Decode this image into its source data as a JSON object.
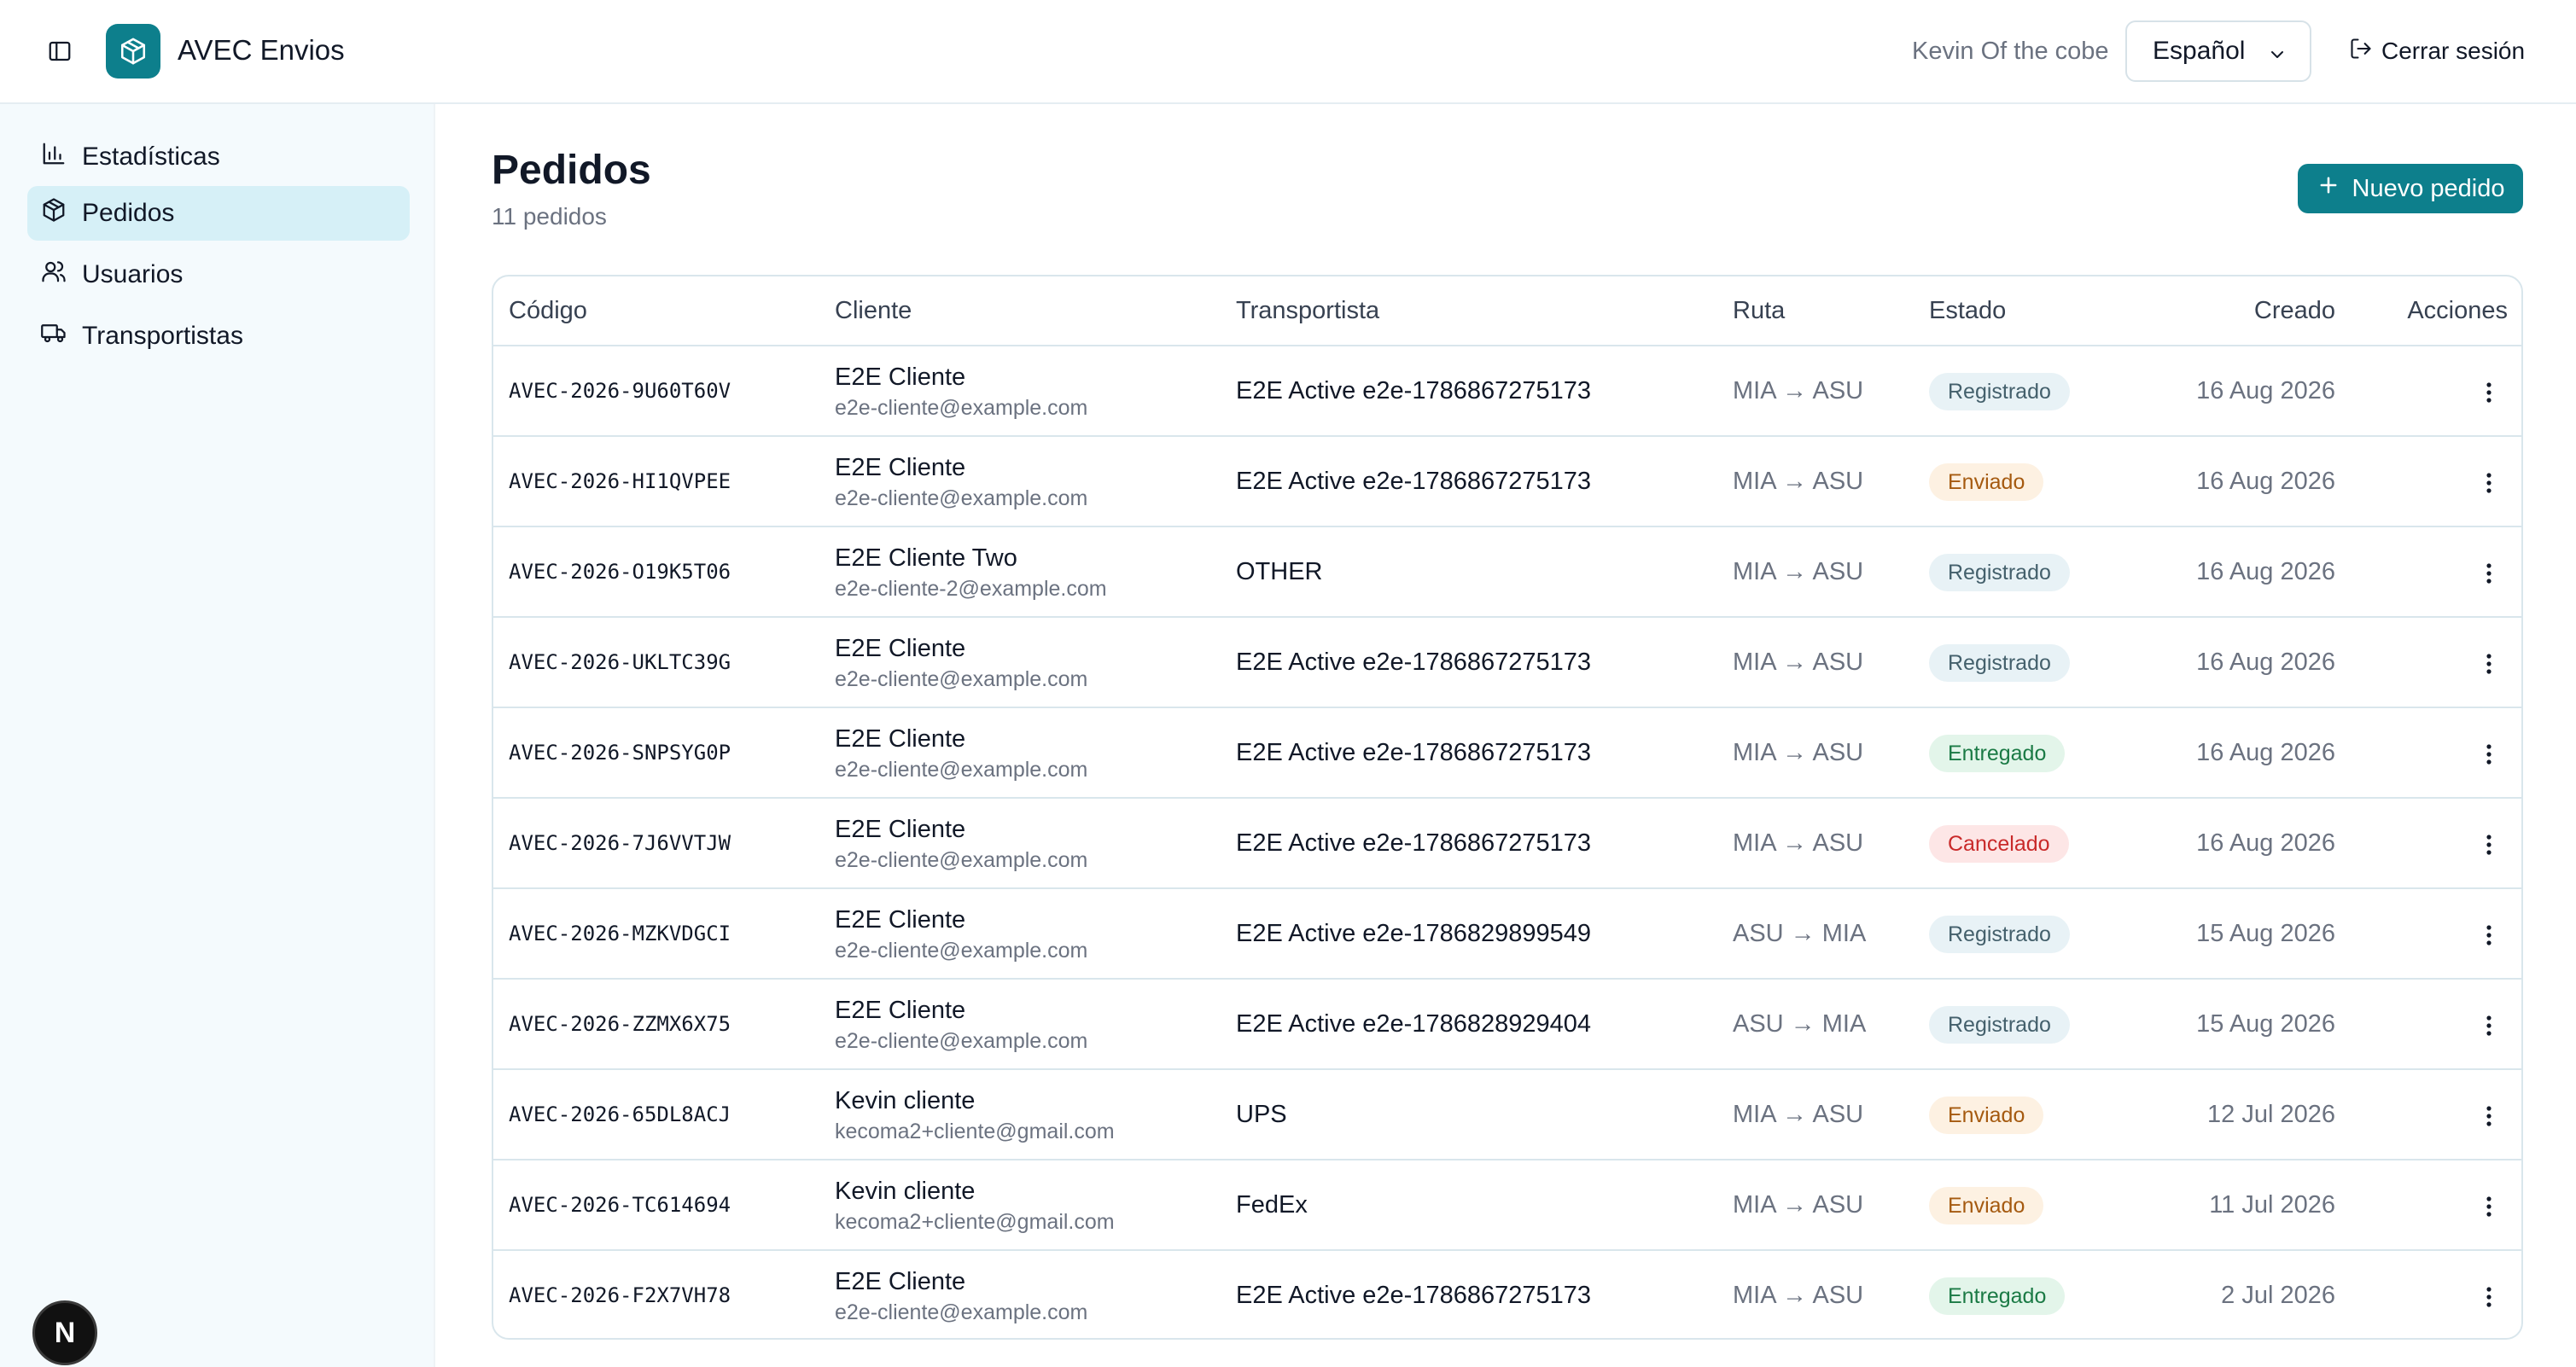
{
  "app": {
    "title": "AVEC Envios",
    "user_name": "Kevin Of the cobe",
    "language": "Español",
    "logout_label": "Cerrar sesión",
    "brand_color": "#0d7f8c"
  },
  "sidebar": {
    "items": [
      {
        "label": "Estadísticas",
        "icon": "bar-chart-icon",
        "active": false
      },
      {
        "label": "Pedidos",
        "icon": "package-icon",
        "active": true
      },
      {
        "label": "Usuarios",
        "icon": "users-icon",
        "active": false
      },
      {
        "label": "Transportistas",
        "icon": "truck-icon",
        "active": false
      }
    ]
  },
  "page": {
    "title": "Pedidos",
    "subtitle": "11 pedidos",
    "new_button_label": "Nuevo pedido"
  },
  "table": {
    "headers": {
      "code": "Código",
      "client": "Cliente",
      "carrier": "Transportista",
      "route": "Ruta",
      "status": "Estado",
      "created": "Creado",
      "actions": "Acciones"
    },
    "rows": [
      {
        "code": "AVEC-2026-9U60T60V",
        "client": "E2E Cliente",
        "email": "e2e-cliente@example.com",
        "carrier": "E2E Active e2e-1786867275173",
        "route": "MIA → ASU",
        "status": "Registrado",
        "status_key": "registrado",
        "created": "16 Aug 2026"
      },
      {
        "code": "AVEC-2026-HI1QVPEE",
        "client": "E2E Cliente",
        "email": "e2e-cliente@example.com",
        "carrier": "E2E Active e2e-1786867275173",
        "route": "MIA → ASU",
        "status": "Enviado",
        "status_key": "enviado",
        "created": "16 Aug 2026"
      },
      {
        "code": "AVEC-2026-O19K5T06",
        "client": "E2E Cliente Two",
        "email": "e2e-cliente-2@example.com",
        "carrier": "OTHER",
        "route": "MIA → ASU",
        "status": "Registrado",
        "status_key": "registrado",
        "created": "16 Aug 2026"
      },
      {
        "code": "AVEC-2026-UKLTC39G",
        "client": "E2E Cliente",
        "email": "e2e-cliente@example.com",
        "carrier": "E2E Active e2e-1786867275173",
        "route": "MIA → ASU",
        "status": "Registrado",
        "status_key": "registrado",
        "created": "16 Aug 2026"
      },
      {
        "code": "AVEC-2026-SNPSYG0P",
        "client": "E2E Cliente",
        "email": "e2e-cliente@example.com",
        "carrier": "E2E Active e2e-1786867275173",
        "route": "MIA → ASU",
        "status": "Entregado",
        "status_key": "entregado",
        "created": "16 Aug 2026"
      },
      {
        "code": "AVEC-2026-7J6VVTJW",
        "client": "E2E Cliente",
        "email": "e2e-cliente@example.com",
        "carrier": "E2E Active e2e-1786867275173",
        "route": "MIA → ASU",
        "status": "Cancelado",
        "status_key": "cancelado",
        "created": "16 Aug 2026"
      },
      {
        "code": "AVEC-2026-MZKVDGCI",
        "client": "E2E Cliente",
        "email": "e2e-cliente@example.com",
        "carrier": "E2E Active e2e-1786829899549",
        "route": "ASU → MIA",
        "status": "Registrado",
        "status_key": "registrado",
        "created": "15 Aug 2026"
      },
      {
        "code": "AVEC-2026-ZZMX6X75",
        "client": "E2E Cliente",
        "email": "e2e-cliente@example.com",
        "carrier": "E2E Active e2e-1786828929404",
        "route": "ASU → MIA",
        "status": "Registrado",
        "status_key": "registrado",
        "created": "15 Aug 2026"
      },
      {
        "code": "AVEC-2026-65DL8ACJ",
        "client": "Kevin cliente",
        "email": "kecoma2+cliente@gmail.com",
        "carrier": "UPS",
        "route": "MIA → ASU",
        "status": "Enviado",
        "status_key": "enviado",
        "created": "12 Jul 2026"
      },
      {
        "code": "AVEC-2026-TC614694",
        "client": "Kevin cliente",
        "email": "kecoma2+cliente@gmail.com",
        "carrier": "FedEx",
        "route": "MIA → ASU",
        "status": "Enviado",
        "status_key": "enviado",
        "created": "11 Jul 2026"
      },
      {
        "code": "AVEC-2026-F2X7VH78",
        "client": "E2E Cliente",
        "email": "e2e-cliente@example.com",
        "carrier": "E2E Active e2e-1786867275173",
        "route": "MIA → ASU",
        "status": "Entregado",
        "status_key": "entregado",
        "created": "2 Jul 2026"
      }
    ]
  },
  "dev_badge": "N"
}
